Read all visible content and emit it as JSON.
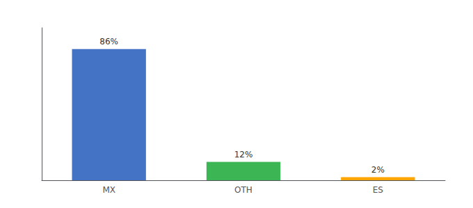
{
  "chart_data": {
    "type": "bar",
    "categories": [
      "MX",
      "OTH",
      "ES"
    ],
    "values": [
      86,
      12,
      2
    ],
    "value_labels": [
      "86%",
      "12%",
      "2%"
    ],
    "colors": [
      "#4472C4",
      "#3CB554",
      "#FFA500"
    ],
    "ylim": [
      0,
      100
    ],
    "grid": false,
    "data_labels": true,
    "tick_labels": "x"
  }
}
